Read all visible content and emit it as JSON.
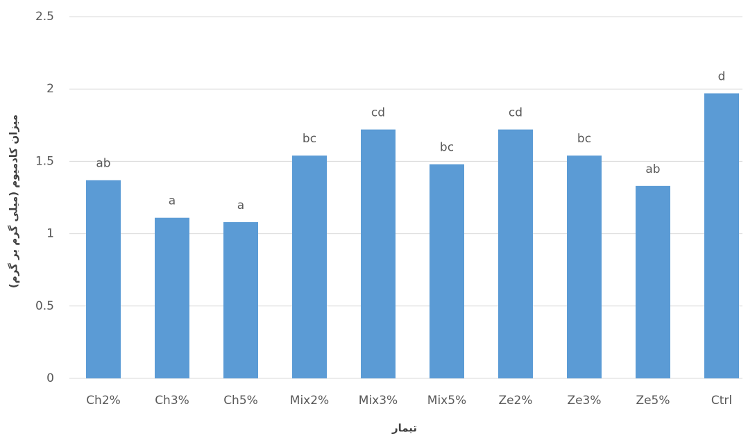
{
  "chart_data": {
    "type": "bar",
    "categories": [
      "Ch2%",
      "Ch3%",
      "Ch5%",
      "Mix2%",
      "Mix3%",
      "Mix5%",
      "Ze2%",
      "Ze3%",
      "Ze5%",
      "Ctrl"
    ],
    "values": [
      1.37,
      1.11,
      1.08,
      1.54,
      1.72,
      1.48,
      1.72,
      1.54,
      1.33,
      1.97
    ],
    "annotations": [
      "ab",
      "a",
      "a",
      "bc",
      "cd",
      "bc",
      "cd",
      "bc",
      "ab",
      "d"
    ],
    "color": "#5b9bd5",
    "x_label": "تیمار",
    "y_label": "میزان کادمیوم (میلی گرم بر گرم)",
    "ylim": [
      0,
      2.5
    ],
    "yticks": [
      0,
      0.5,
      1,
      1.5,
      2,
      2.5
    ],
    "grid": true
  }
}
